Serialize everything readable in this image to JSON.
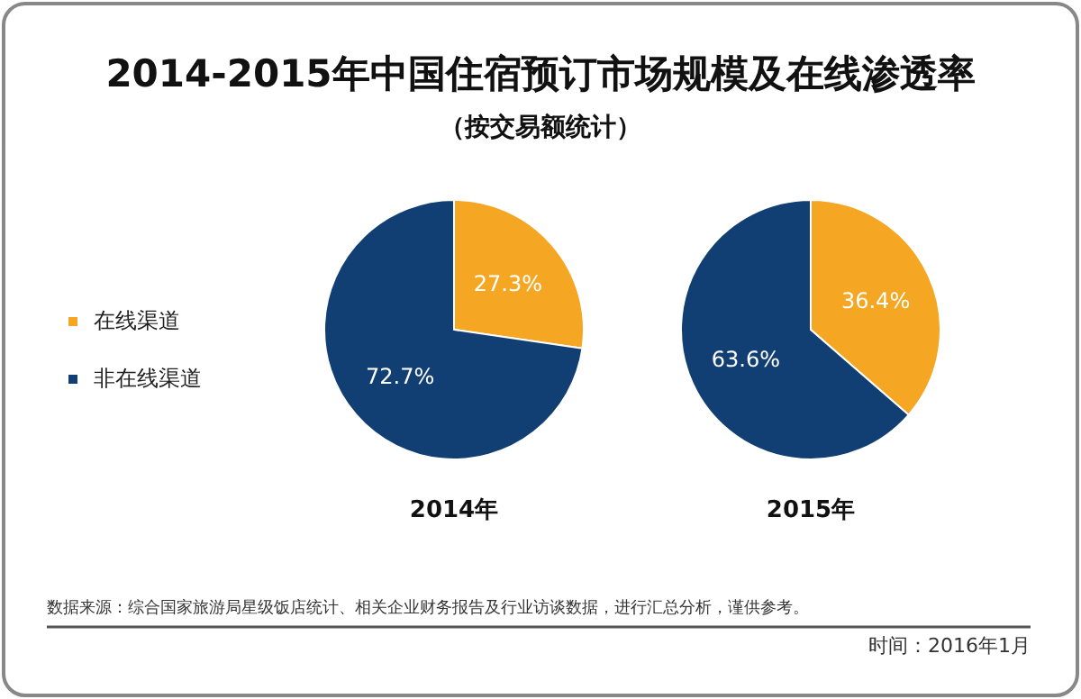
{
  "chart_data": [
    {
      "type": "pie",
      "title": "2014-2015年中国住宿预订市场规模及在线渗透率",
      "subtitle": "（按交易额统计）",
      "xlabel": "2014年",
      "categories": [
        "在线渠道",
        "非在线渠道"
      ],
      "values": [
        27.3,
        72.7
      ],
      "colors": [
        "#f5a623",
        "#123f73"
      ],
      "value_labels": [
        "27.3%",
        "72.7%"
      ],
      "legend": "left",
      "annotations": [
        "数据来源：综合国家旅游局星级饭店统计、相关企业财务报告及行业访谈数据，进行汇总分析，谨供参考。",
        "时间：2016年1月"
      ]
    },
    {
      "type": "pie",
      "xlabel": "2015年",
      "categories": [
        null,
        null
      ],
      "values": [
        36.4,
        63.6
      ],
      "colors": [
        "#f5a623",
        "#123f73"
      ],
      "value_labels": [
        "36.4%",
        "63.6%"
      ]
    }
  ]
}
